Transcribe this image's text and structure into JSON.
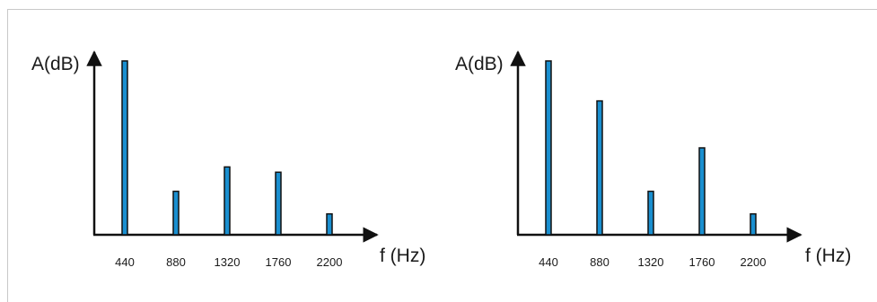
{
  "chart_data": [
    {
      "type": "bar",
      "ylabel": "A(dB)",
      "xlabel": "f (Hz)",
      "categories": [
        "440",
        "880",
        "1320",
        "1760",
        "2200"
      ],
      "values": [
        100,
        25,
        39,
        36,
        12
      ],
      "ylim": [
        0,
        110
      ],
      "grid": false,
      "legend": "none",
      "bar_color": "#1a8fd0",
      "bar_outline": "#111111"
    },
    {
      "type": "bar",
      "ylabel": "A(dB)",
      "xlabel": "f (Hz)",
      "categories": [
        "440",
        "880",
        "1320",
        "1760",
        "2200"
      ],
      "values": [
        100,
        77,
        25,
        50,
        12
      ],
      "ylim": [
        0,
        110
      ],
      "grid": false,
      "legend": "none",
      "bar_color": "#1a8fd0",
      "bar_outline": "#111111"
    }
  ]
}
